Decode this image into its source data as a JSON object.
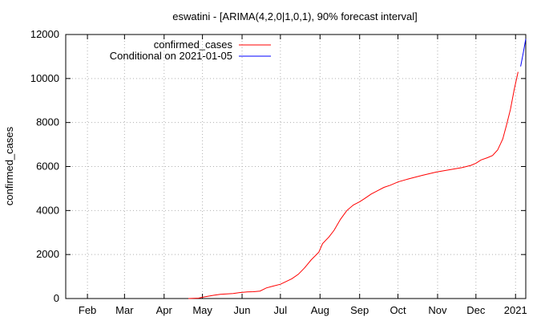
{
  "chart_data": {
    "type": "line",
    "title": "eswatini -  [ARIMA(4,2,0|1,0,1), 90% forecast interval]",
    "xlabel": "",
    "ylabel": "confirmed_cases",
    "ylim": [
      0,
      12000
    ],
    "y_ticks": [
      0,
      2000,
      4000,
      6000,
      8000,
      10000,
      12000
    ],
    "x_ticks": [
      {
        "label": "Feb",
        "date": "2020-02-01"
      },
      {
        "label": "Mar",
        "date": "2020-03-01"
      },
      {
        "label": "Apr",
        "date": "2020-04-01"
      },
      {
        "label": "May",
        "date": "2020-05-01"
      },
      {
        "label": "Jun",
        "date": "2020-06-01"
      },
      {
        "label": "Jul",
        "date": "2020-07-01"
      },
      {
        "label": "Aug",
        "date": "2020-08-01"
      },
      {
        "label": "Sep",
        "date": "2020-09-01"
      },
      {
        "label": "Oct",
        "date": "2020-10-01"
      },
      {
        "label": "Nov",
        "date": "2020-11-01"
      },
      {
        "label": "Dec",
        "date": "2020-12-01"
      },
      {
        "label": "2021",
        "date": "2021-01-01"
      }
    ],
    "xlim": [
      "2020-01-15",
      "2021-01-09"
    ],
    "grid": true,
    "legend_position": "top-left",
    "series": [
      {
        "name": "confirmed_cases",
        "color": "#ff0000",
        "points": [
          [
            "2020-04-20",
            0
          ],
          [
            "2020-04-28",
            20
          ],
          [
            "2020-05-01",
            60
          ],
          [
            "2020-05-05",
            100
          ],
          [
            "2020-05-10",
            150
          ],
          [
            "2020-05-15",
            190
          ],
          [
            "2020-05-20",
            210
          ],
          [
            "2020-05-25",
            230
          ],
          [
            "2020-05-30",
            270
          ],
          [
            "2020-06-05",
            300
          ],
          [
            "2020-06-10",
            310
          ],
          [
            "2020-06-15",
            340
          ],
          [
            "2020-06-20",
            480
          ],
          [
            "2020-06-25",
            560
          ],
          [
            "2020-07-01",
            650
          ],
          [
            "2020-07-05",
            760
          ],
          [
            "2020-07-10",
            900
          ],
          [
            "2020-07-15",
            1100
          ],
          [
            "2020-07-20",
            1400
          ],
          [
            "2020-07-25",
            1750
          ],
          [
            "2020-07-31",
            2100
          ],
          [
            "2020-08-03",
            2500
          ],
          [
            "2020-08-08",
            2800
          ],
          [
            "2020-08-12",
            3100
          ],
          [
            "2020-08-17",
            3600
          ],
          [
            "2020-08-22",
            4000
          ],
          [
            "2020-08-27",
            4250
          ],
          [
            "2020-09-01",
            4400
          ],
          [
            "2020-09-05",
            4550
          ],
          [
            "2020-09-10",
            4750
          ],
          [
            "2020-09-15",
            4900
          ],
          [
            "2020-09-20",
            5050
          ],
          [
            "2020-09-25",
            5150
          ],
          [
            "2020-10-01",
            5300
          ],
          [
            "2020-10-10",
            5450
          ],
          [
            "2020-10-20",
            5600
          ],
          [
            "2020-10-31",
            5750
          ],
          [
            "2020-11-10",
            5850
          ],
          [
            "2020-11-20",
            5950
          ],
          [
            "2020-11-27",
            6050
          ],
          [
            "2020-12-01",
            6150
          ],
          [
            "2020-12-05",
            6300
          ],
          [
            "2020-12-10",
            6400
          ],
          [
            "2020-12-14",
            6500
          ],
          [
            "2020-12-18",
            6750
          ],
          [
            "2020-12-22",
            7250
          ],
          [
            "2020-12-25",
            7900
          ],
          [
            "2020-12-28",
            8600
          ],
          [
            "2020-12-31",
            9500
          ],
          [
            "2021-01-03",
            10300
          ]
        ]
      },
      {
        "name": "Conditional on 2021-01-05",
        "color": "#0000ff",
        "points": [
          [
            "2021-01-05",
            10550
          ],
          [
            "2021-01-07",
            11150
          ],
          [
            "2021-01-09",
            11800
          ]
        ]
      }
    ]
  }
}
